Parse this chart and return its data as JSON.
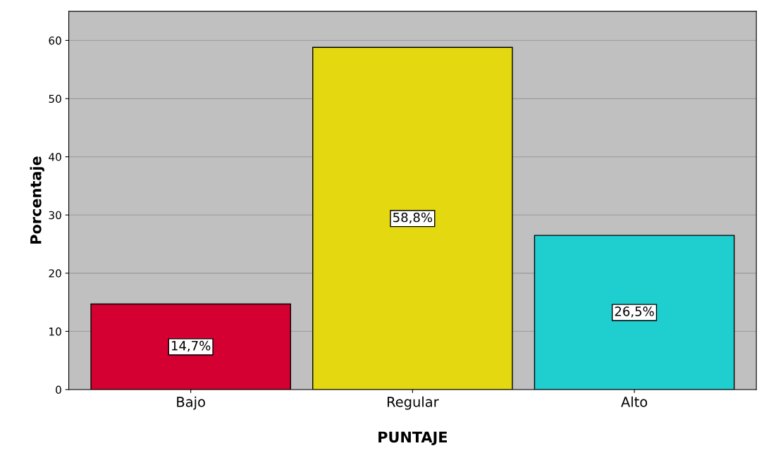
{
  "chart_data": {
    "type": "bar",
    "xlabel": "PUNTAJE",
    "ylabel": "Porcentaje",
    "categories": [
      "Bajo",
      "Regular",
      "Alto"
    ],
    "values": [
      14.7,
      58.8,
      26.5
    ],
    "value_labels": [
      "14,7%",
      "58,8%",
      "26,5%"
    ],
    "colors": [
      "#d50032",
      "#e4d811",
      "#1fcfcf"
    ],
    "ylim": [
      0,
      65
    ],
    "yticks": [
      0,
      10,
      20,
      30,
      40,
      50,
      60
    ],
    "grid": "y"
  }
}
